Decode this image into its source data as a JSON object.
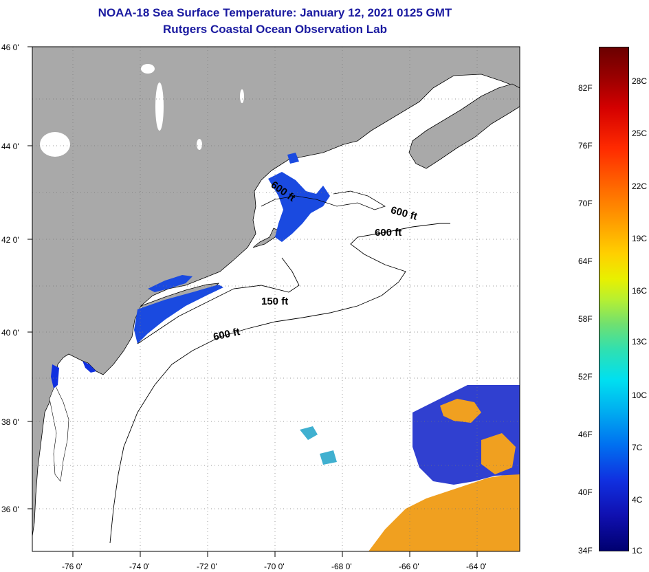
{
  "title_line1": "NOAA-18 Sea Surface Temperature:  January 12, 2021 0125 GMT",
  "title_line2": "Rutgers Coastal Ocean Observation Lab",
  "lat_labels": [
    "46 0'",
    "44 0'",
    "42 0'",
    "40 0'",
    "38 0'",
    "36 0'"
  ],
  "lon_labels": [
    "-76 0'",
    "-74 0'",
    "-72 0'",
    "-70 0'",
    "-68 0'",
    "-66 0'",
    "-64 0'"
  ],
  "contour_labels": [
    "600 ft",
    "600 ft",
    "600 ft",
    "150 ft",
    "600 ft"
  ],
  "colorbar_f_labels": [
    "82F",
    "76F",
    "70F",
    "64F",
    "58F",
    "52F",
    "46F",
    "40F",
    "34F"
  ],
  "colorbar_c_labels": [
    "28C",
    "25C",
    "22C",
    "19C",
    "16C",
    "13C",
    "10C",
    "7C",
    "4C",
    "1C"
  ],
  "colors": {
    "land": "#a9a9a9",
    "ocean": "#ffffff",
    "title": "#1a1aa0",
    "cold": "#1030e0",
    "warm": "#ffa000"
  }
}
